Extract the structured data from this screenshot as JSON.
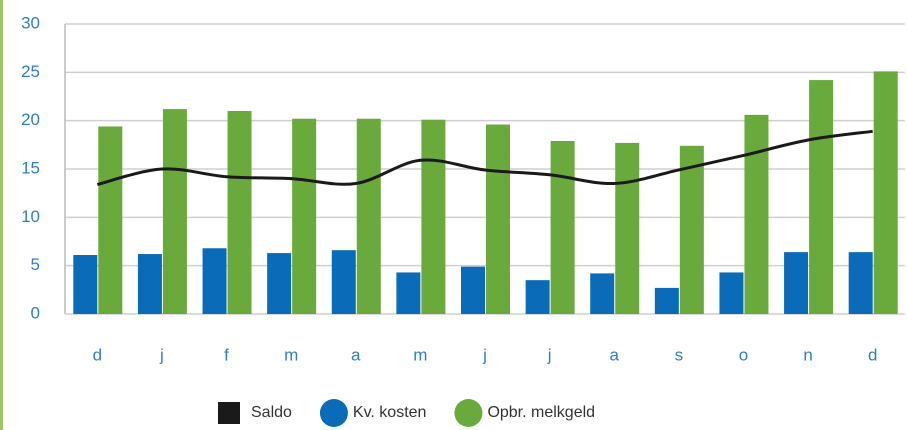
{
  "chart_data": {
    "type": "bar",
    "categories": [
      "d",
      "j",
      "f",
      "m",
      "a",
      "m",
      "j",
      "j",
      "a",
      "s",
      "o",
      "n",
      "d"
    ],
    "series": [
      {
        "name": "Saldo",
        "type": "line",
        "color": "#1a1a1a",
        "values": [
          13.4,
          15.0,
          14.2,
          14.0,
          13.5,
          15.9,
          14.9,
          14.4,
          13.5,
          14.9,
          16.4,
          18.0,
          18.9
        ]
      },
      {
        "name": "Kv. kosten",
        "type": "bar",
        "color": "#0a6bb8",
        "values": [
          6.1,
          6.2,
          6.8,
          6.3,
          6.6,
          4.3,
          4.9,
          3.5,
          4.2,
          2.7,
          4.3,
          6.4,
          6.4
        ]
      },
      {
        "name": "Opbr. melkgeld",
        "type": "bar",
        "color": "#6aaa3c",
        "values": [
          19.4,
          21.2,
          21.0,
          20.2,
          20.2,
          20.1,
          19.6,
          17.9,
          17.7,
          17.4,
          20.6,
          24.2,
          25.1
        ]
      }
    ],
    "ylim": [
      0,
      30
    ],
    "yticks": [
      0,
      5,
      10,
      15,
      20,
      25,
      30
    ],
    "grid": true
  }
}
